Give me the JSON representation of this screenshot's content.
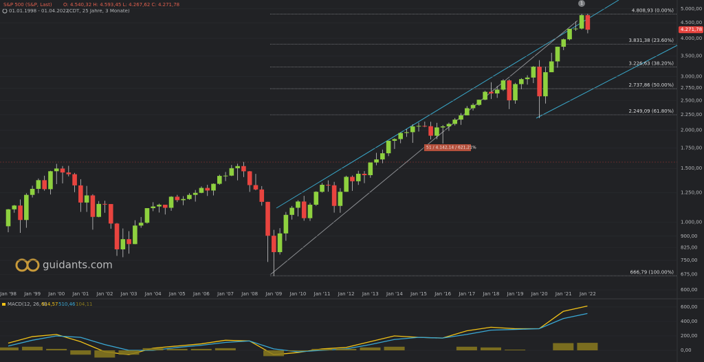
{
  "header": {
    "instrument": "S&P 500 (S&P, Last)",
    "ohlc": "O: 4.540,32  H: 4.593,45  L: 4.267,62  C: 4.271,78",
    "range": "01.01.1998 - 01.04.2022",
    "range_note": "(CDT, 25 Jahre, 3 Monate)"
  },
  "logo": "guidants.com",
  "event_marker": "1",
  "chart_data": [
    {
      "type": "candlestick",
      "log_scale": true,
      "up_color": "#8ed13f",
      "down_color": "#e8443f",
      "categories": [
        "Jan '98",
        null,
        null,
        null,
        "Jan '99",
        null,
        null,
        null,
        "Jan '00",
        null,
        null,
        null,
        "Jan '01",
        null,
        null,
        null,
        "Jan '02",
        null,
        null,
        null,
        "Jan '03",
        null,
        null,
        null,
        "Jan '04",
        null,
        null,
        null,
        "Jan '05",
        null,
        null,
        null,
        "Jan '06",
        null,
        null,
        null,
        "Jan '07",
        null,
        null,
        null,
        "Jan '08",
        null,
        null,
        null,
        "Jan '09",
        null,
        null,
        null,
        "Jan '10",
        null,
        null,
        null,
        "Jan '11",
        null,
        null,
        null,
        "Jan '12",
        null,
        null,
        null,
        "Jan '13",
        null,
        null,
        null,
        "Jan '14",
        null,
        null,
        null,
        "Jan '15",
        null,
        null,
        null,
        "Jan '16",
        null,
        null,
        null,
        "Jan '17",
        null,
        null,
        null,
        "Jan '18",
        null,
        null,
        null,
        "Jan '19",
        null,
        null,
        null,
        "Jan '20",
        null,
        null,
        null,
        "Jan '21",
        null,
        null,
        null,
        "Jan '22"
      ],
      "open": [
        970,
        1102,
        1134,
        1017,
        1229,
        1286,
        1373,
        1283,
        1469,
        1499,
        1455,
        1436,
        1320,
        1160,
        1224,
        1041,
        1148,
        1147,
        990,
        815,
        880,
        848,
        975,
        996,
        1112,
        1126,
        1141,
        1115,
        1212,
        1181,
        1191,
        1229,
        1248,
        1295,
        1270,
        1336,
        1418,
        1421,
        1503,
        1527,
        1468,
        1323,
        1280,
        1166,
        903,
        798,
        919,
        1057,
        1115,
        1169,
        1031,
        1141,
        1258,
        1326,
        1321,
        1131,
        1258,
        1408,
        1362,
        1441,
        1426,
        1569,
        1606,
        1682,
        1848,
        1872,
        1960,
        1972,
        2059,
        2068,
        2063,
        1920,
        2044,
        2060,
        2099,
        2168,
        2239,
        2363,
        2423,
        2519,
        2674,
        2641,
        2718,
        2914,
        2507,
        2834,
        2942,
        2977,
        3231,
        2585,
        3100,
        3363,
        3756,
        3973,
        4298,
        4308,
        4766
      ],
      "high": [
        1105,
        1139,
        1187,
        1244,
        1317,
        1390,
        1420,
        1474,
        1553,
        1527,
        1530,
        1450,
        1383,
        1315,
        1235,
        1173,
        1176,
        1147,
        994,
        954,
        935,
        1015,
        1040,
        1112,
        1163,
        1150,
        1140,
        1217,
        1229,
        1217,
        1245,
        1275,
        1310,
        1326,
        1340,
        1431,
        1461,
        1540,
        1555,
        1576,
        1471,
        1440,
        1313,
        1167,
        944,
        956,
        1080,
        1130,
        1180,
        1220,
        1157,
        1263,
        1344,
        1371,
        1356,
        1293,
        1420,
        1422,
        1474,
        1470,
        1570,
        1688,
        1729,
        1849,
        1883,
        1968,
        2019,
        2093,
        2119,
        2135,
        2133,
        2116,
        2081,
        2120,
        2194,
        2278,
        2401,
        2454,
        2519,
        2695,
        2873,
        2792,
        2941,
        2940,
        2860,
        2964,
        3028,
        3247,
        3394,
        3233,
        3588,
        3760,
        3994,
        4302,
        4546,
        4808,
        4819
      ],
      "low": [
        927,
        1074,
        923,
        959,
        1205,
        1244,
        1268,
        1233,
        1333,
        1340,
        1413,
        1254,
        1081,
        1081,
        945,
        1038,
        1074,
        952,
        776,
        768,
        789,
        847,
        959,
        990,
        1087,
        1076,
        1060,
        1090,
        1164,
        1137,
        1184,
        1168,
        1245,
        1219,
        1224,
        1327,
        1364,
        1416,
        1371,
        1406,
        1257,
        1272,
        1133,
        741,
        667,
        784,
        869,
        1020,
        1045,
        1011,
        1010,
        1131,
        1250,
        1259,
        1075,
        1074,
        1258,
        1267,
        1325,
        1343,
        1398,
        1536,
        1560,
        1646,
        1737,
        1814,
        1904,
        1820,
        1981,
        2048,
        1867,
        1872,
        1810,
        1992,
        2074,
        2084,
        2245,
        2322,
        2406,
        2511,
        2533,
        2554,
        2691,
        2347,
        2444,
        2729,
        2823,
        2856,
        2192,
        2447,
        3101,
        3209,
        3662,
        3944,
        4233,
        4279,
        4157
      ],
      "close": [
        1102,
        1134,
        1017,
        1229,
        1286,
        1373,
        1283,
        1469,
        1499,
        1455,
        1436,
        1320,
        1160,
        1224,
        1041,
        1148,
        1147,
        990,
        815,
        880,
        848,
        975,
        996,
        1112,
        1126,
        1141,
        1115,
        1212,
        1181,
        1191,
        1229,
        1248,
        1295,
        1270,
        1336,
        1418,
        1421,
        1503,
        1527,
        1468,
        1323,
        1280,
        1166,
        903,
        798,
        919,
        1057,
        1115,
        1169,
        1031,
        1141,
        1258,
        1326,
        1321,
        1131,
        1258,
        1408,
        1362,
        1441,
        1426,
        1569,
        1606,
        1682,
        1848,
        1872,
        1960,
        1972,
        2059,
        2068,
        2063,
        1920,
        2044,
        2060,
        2099,
        2168,
        2239,
        2363,
        2423,
        2519,
        2674,
        2641,
        2718,
        2914,
        2507,
        2834,
        2942,
        2977,
        3231,
        2585,
        3100,
        3363,
        3756,
        3973,
        4298,
        4308,
        4766,
        4271.78
      ],
      "close_label": "4.271,78",
      "ylim": [
        570,
        5344
      ],
      "yticks": [
        {
          "value": 5000,
          "label": "5.000,00"
        },
        {
          "value": 4500,
          "label": "4.500,00"
        },
        {
          "value": 4000,
          "label": "4.000,00"
        },
        {
          "value": 3500,
          "label": "3.500,00"
        },
        {
          "value": 3000,
          "label": "3.000,00"
        },
        {
          "value": 2750,
          "label": "2.750,00"
        },
        {
          "value": 2500,
          "label": "2.500,00"
        },
        {
          "value": 2250,
          "label": "2.250,00"
        },
        {
          "value": 2000,
          "label": "2.000,00"
        },
        {
          "value": 1750,
          "label": "1.750,00"
        },
        {
          "value": 1500,
          "label": "1.500,00"
        },
        {
          "value": 1250,
          "label": "1.250,00"
        },
        {
          "value": 1000,
          "label": "1.000,00"
        },
        {
          "value": 900,
          "label": "900,00"
        },
        {
          "value": 825,
          "label": "825,00"
        },
        {
          "value": 750,
          "label": "750,00"
        },
        {
          "value": 675,
          "label": "675,00"
        },
        {
          "value": 600,
          "label": "600,00"
        }
      ],
      "fib_levels": [
        {
          "value": 4808.93,
          "label": "4.808,93 (0.00%)"
        },
        {
          "value": 3831.38,
          "label": "3.831,38 (23.60%)"
        },
        {
          "value": 3226.63,
          "label": "3.226,63 (38.20%)"
        },
        {
          "value": 2737.86,
          "label": "2.737,86 (50.00%)"
        },
        {
          "value": 2249.09,
          "label": "2.249,09 (61.80%)"
        },
        {
          "value": 666.79,
          "label": "666,79 (100.00%)"
        }
      ],
      "annotation": "51 / 4.142,14 / 621,21%"
    },
    {
      "type": "macd",
      "title": "MACD(12, 26, 9)",
      "x": [
        1998,
        1999,
        2000,
        2001,
        2002,
        2003,
        2004,
        2005,
        2006,
        2007,
        2008,
        2009,
        2010,
        2011,
        2012,
        2013,
        2014,
        2015,
        2016,
        2017,
        2018,
        2019,
        2020,
        2021,
        2022
      ],
      "xlim": [
        1997.66,
        2025.72
      ],
      "ylim": [
        -95,
        695
      ],
      "yticks": [
        {
          "value": 0,
          "label": "0,00"
        },
        {
          "value": 200,
          "label": "200,00"
        },
        {
          "value": 400,
          "label": "400,00"
        },
        {
          "value": 600,
          "label": "600,00"
        }
      ],
      "series": [
        {
          "kind": "line",
          "color": "#f2c318",
          "last_label": "614,57",
          "values": [
            100,
            190,
            220,
            120,
            -20,
            -60,
            30,
            60,
            90,
            140,
            130,
            -60,
            -30,
            20,
            40,
            120,
            200,
            180,
            170,
            270,
            320,
            300,
            300,
            540,
            614.57
          ]
        },
        {
          "kind": "line",
          "color": "#3aa9d6",
          "last_label": "510,46",
          "values": [
            60,
            140,
            200,
            180,
            80,
            0,
            0,
            40,
            70,
            110,
            130,
            20,
            -20,
            0,
            20,
            80,
            150,
            180,
            170,
            220,
            280,
            290,
            300,
            440,
            510.46
          ]
        },
        {
          "kind": "bar",
          "color": "#8a7a1e",
          "last_label": "104,11",
          "values": [
            40,
            50,
            20,
            -60,
            -100,
            -60,
            30,
            20,
            20,
            30,
            0,
            -80,
            -10,
            20,
            20,
            40,
            50,
            0,
            0,
            50,
            40,
            10,
            0,
            100,
            104.11
          ]
        }
      ]
    }
  ]
}
